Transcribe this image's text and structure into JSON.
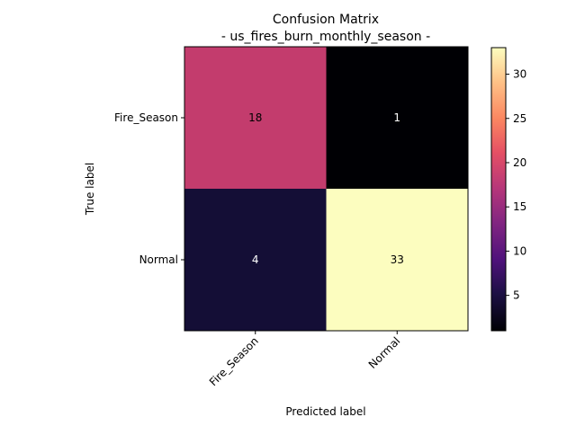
{
  "chart_data": {
    "type": "heatmap",
    "title": "Confusion Matrix",
    "subtitle": "- us_fires_burn_monthly_season -",
    "xlabel": "Predicted label",
    "ylabel": "True label",
    "x_categories": [
      "Fire_Season",
      "Normal"
    ],
    "y_categories": [
      "Fire_Season",
      "Normal"
    ],
    "values": [
      [
        18,
        1
      ],
      [
        4,
        33
      ]
    ],
    "cell_colors": [
      [
        "#c33c6d",
        "#000004"
      ],
      [
        "#140e36",
        "#fcfdbf"
      ]
    ],
    "text_colors": [
      [
        "#000000",
        "#ffffff"
      ],
      [
        "#ffffff",
        "#000000"
      ]
    ],
    "colormap": "magma",
    "colorbar": {
      "range": [
        1,
        33
      ],
      "ticks": [
        5,
        10,
        15,
        20,
        25,
        30
      ]
    },
    "grid": false
  }
}
